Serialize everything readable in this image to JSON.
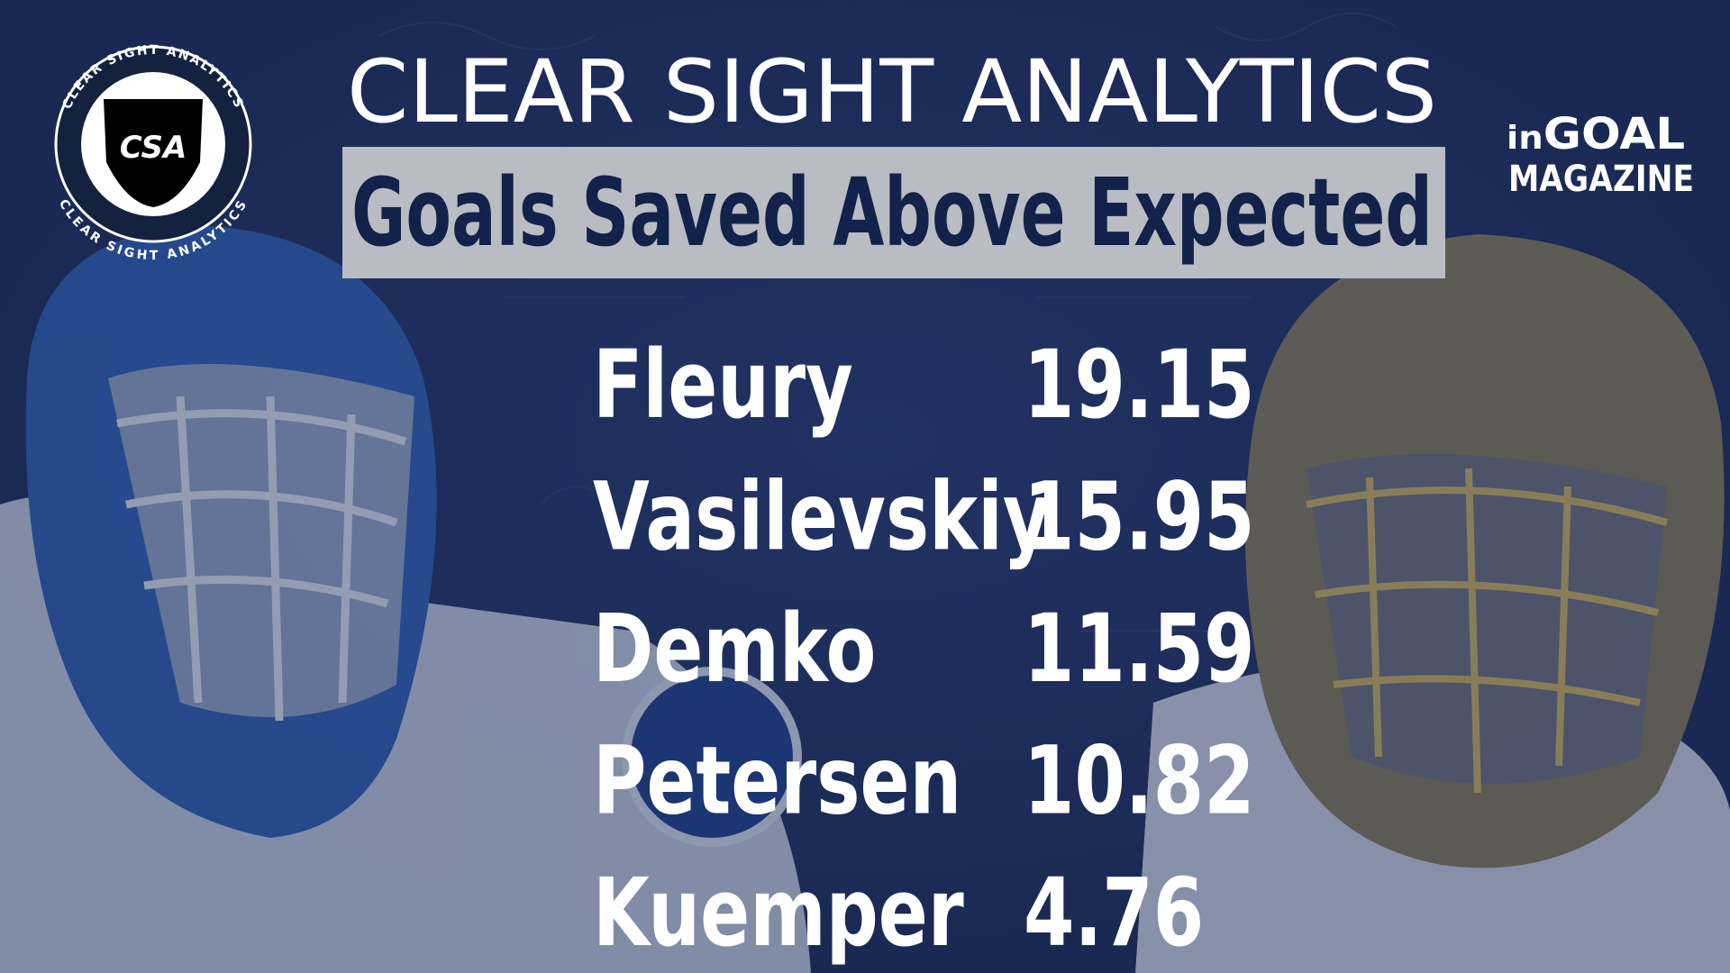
{
  "header": {
    "title": "CLEAR SIGHT ANALYTICS",
    "subtitle": "Goals Saved Above Expected"
  },
  "left_logo": {
    "ring_text": "CLEAR SIGHT ANALYTICS",
    "shield_text": "CSA"
  },
  "right_logo": {
    "line1_a": "in",
    "line1_b": "GOAL",
    "line2": "MAGAZINE"
  },
  "table": {
    "rows": [
      [
        "Fleury",
        "19.15"
      ],
      [
        "Vasilevskiy",
        "15.95"
      ],
      [
        "Demko",
        "11.59"
      ],
      [
        "Petersen",
        "10.82"
      ],
      [
        "Kuemper",
        "4.76"
      ]
    ]
  }
}
